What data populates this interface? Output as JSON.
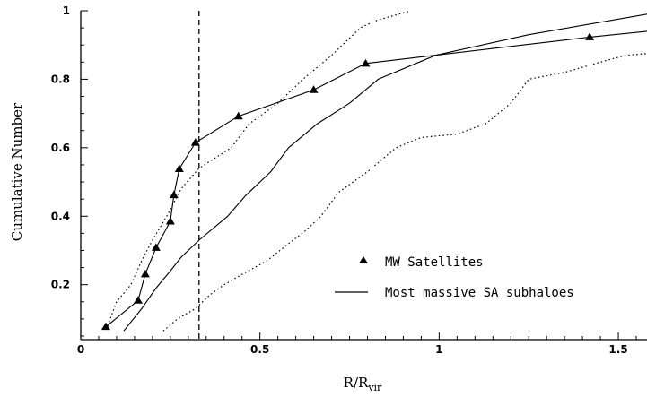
{
  "chart_data": {
    "type": "line",
    "xlabel": "R/R",
    "xlabel_sub": "vir",
    "ylabel": "Cumulative Number",
    "xlim": [
      0,
      1.58
    ],
    "ylim": [
      0.05,
      1.0
    ],
    "x_ticks": [
      0,
      0.5,
      1,
      1.5
    ],
    "x_tick_labels": [
      "0",
      "0.5",
      "1",
      "1.5"
    ],
    "y_ticks": [
      0.2,
      0.4,
      0.6,
      0.8,
      1
    ],
    "y_tick_labels": [
      "0.2",
      "0.4",
      "0.6",
      "0.8",
      "1"
    ],
    "vline": {
      "x": 0.33,
      "style": "dashed"
    },
    "legend_position": "center-right",
    "series": [
      {
        "name": "MW Satellites",
        "style": "solid-with-triangles",
        "x": [
          0.07,
          0.16,
          0.18,
          0.21,
          0.25,
          0.26,
          0.275,
          0.32,
          0.44,
          0.65,
          0.795,
          1.42,
          1.58
        ],
        "y": [
          0.077,
          0.154,
          0.231,
          0.308,
          0.385,
          0.462,
          0.538,
          0.615,
          0.692,
          0.769,
          0.846,
          0.923,
          0.94
        ]
      },
      {
        "name": "Most massive SA subhaloes",
        "style": "solid",
        "x": [
          0.12,
          0.17,
          0.21,
          0.25,
          0.28,
          0.33,
          0.41,
          0.46,
          0.53,
          0.58,
          0.66,
          0.75,
          0.83,
          0.99,
          1.25,
          1.58
        ],
        "y": [
          0.065,
          0.13,
          0.19,
          0.24,
          0.28,
          0.33,
          0.4,
          0.46,
          0.53,
          0.6,
          0.67,
          0.73,
          0.8,
          0.87,
          0.93,
          0.99
        ]
      },
      {
        "style": "dotted",
        "x": [
          0.075,
          0.1,
          0.14,
          0.17,
          0.2,
          0.24,
          0.28,
          0.33,
          0.42,
          0.47,
          0.55,
          0.62,
          0.7,
          0.75,
          0.78,
          0.82,
          0.92
        ],
        "y": [
          0.08,
          0.15,
          0.2,
          0.27,
          0.33,
          0.4,
          0.48,
          0.54,
          0.6,
          0.67,
          0.73,
          0.8,
          0.87,
          0.92,
          0.95,
          0.97,
          1.0
        ]
      },
      {
        "style": "dotted",
        "x": [
          0.23,
          0.27,
          0.32,
          0.36,
          0.4,
          0.45,
          0.52,
          0.58,
          0.63,
          0.67,
          0.72,
          0.8,
          0.88,
          0.95,
          1.05,
          1.13,
          1.2,
          1.25,
          1.35,
          1.45,
          1.52,
          1.58
        ],
        "y": [
          0.065,
          0.1,
          0.13,
          0.17,
          0.2,
          0.23,
          0.27,
          0.32,
          0.36,
          0.4,
          0.47,
          0.53,
          0.6,
          0.63,
          0.64,
          0.67,
          0.73,
          0.8,
          0.82,
          0.85,
          0.87,
          0.875
        ]
      }
    ]
  }
}
